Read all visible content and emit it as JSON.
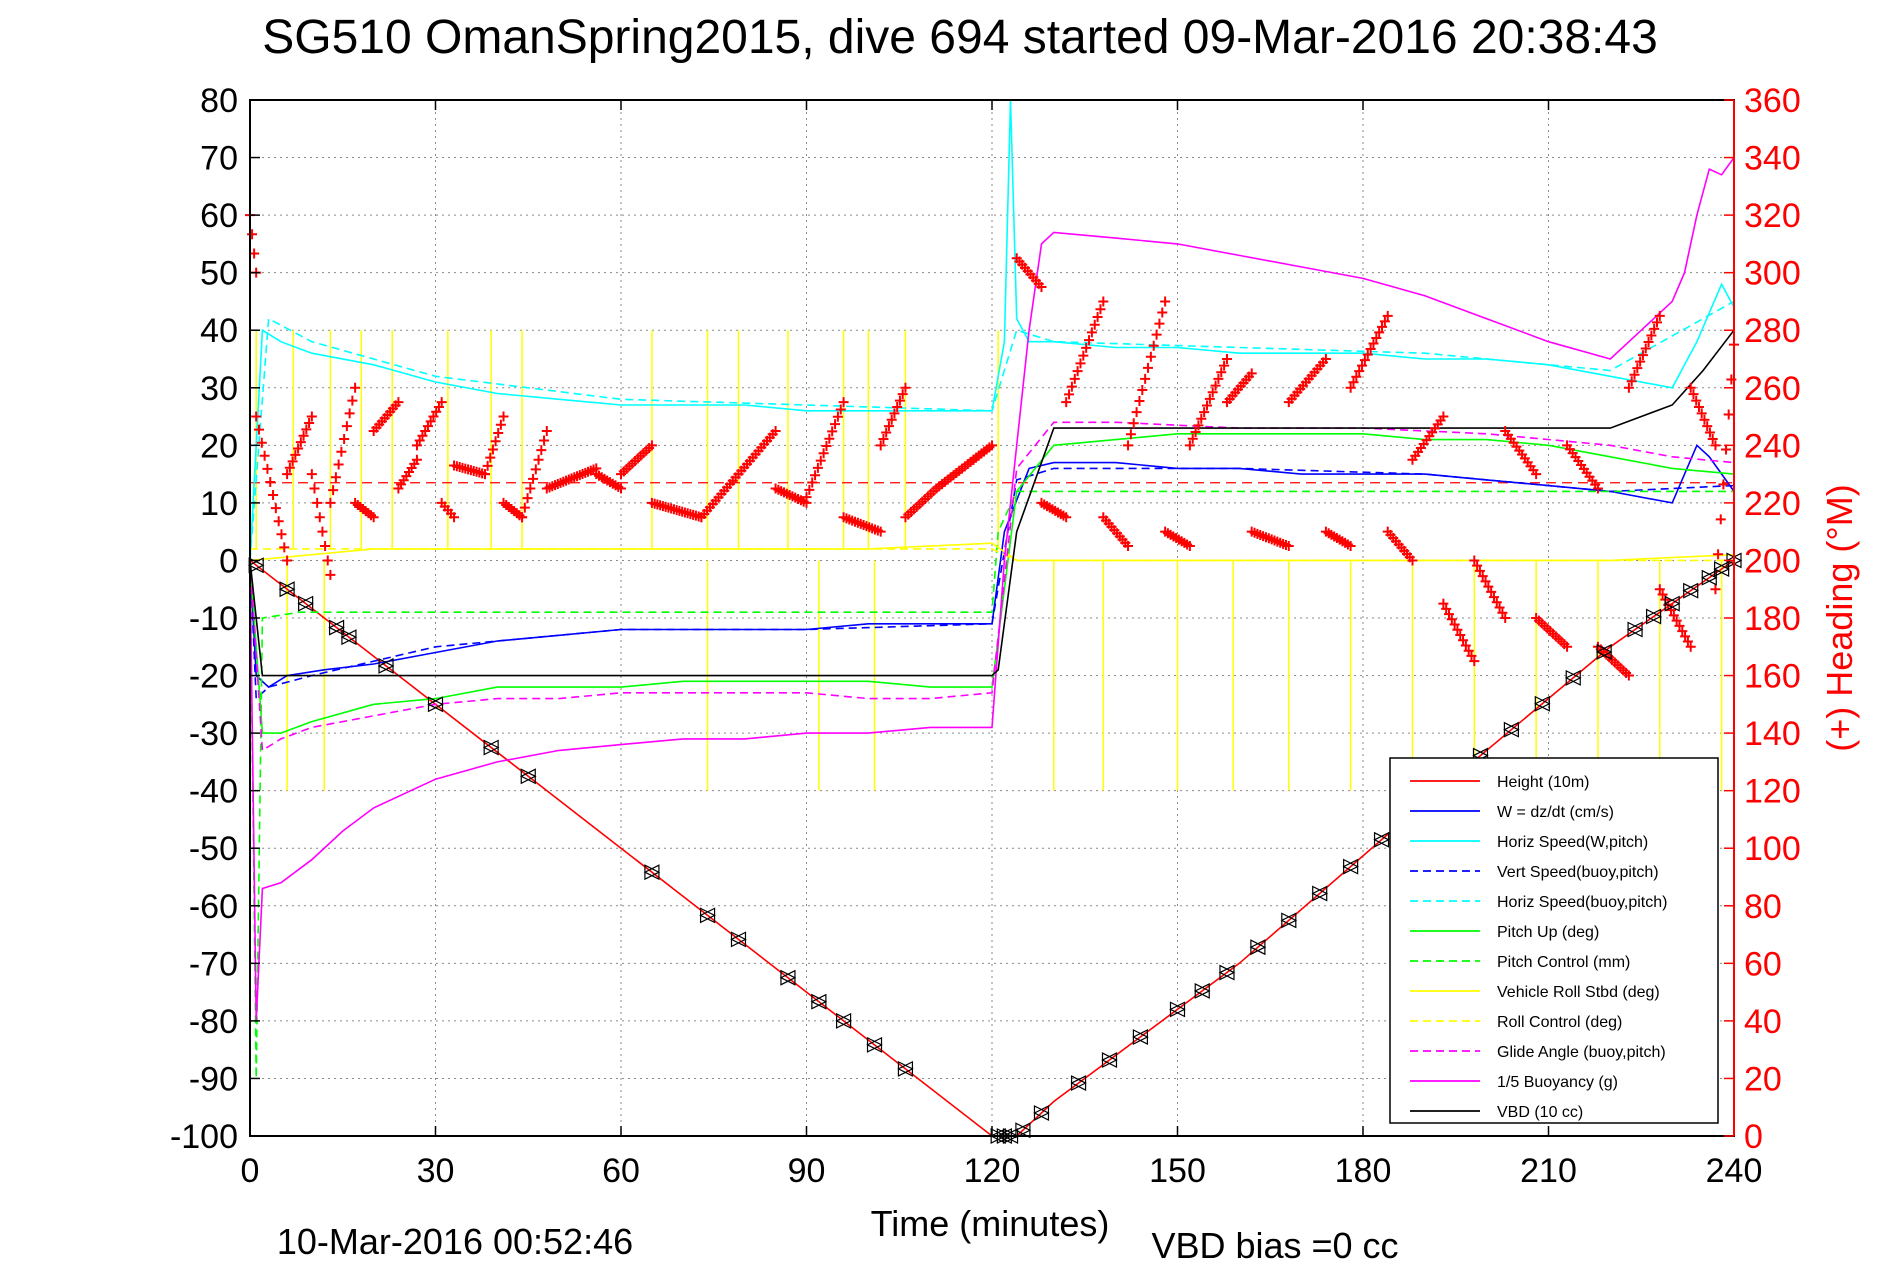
{
  "chart_data": {
    "type": "line",
    "title": "SG510 OmanSpring2015, dive 694 started 09-Mar-2016 20:38:43",
    "xlabel": "Time (minutes)",
    "ylabel_right": "(+) Heading (°M)",
    "footer_left": "10-Mar-2016 00:52:46",
    "footer_right": "VBD bias =0 cc",
    "xlim": [
      0,
      240
    ],
    "ylim": [
      -100,
      80
    ],
    "ylim_right": [
      0,
      360
    ],
    "x_ticks": [
      0,
      30,
      60,
      90,
      120,
      150,
      180,
      210,
      240
    ],
    "y_ticks": [
      80,
      70,
      60,
      50,
      40,
      30,
      20,
      10,
      0,
      -10,
      -20,
      -30,
      -40,
      -50,
      -60,
      -70,
      -80,
      -90,
      -100
    ],
    "y_ticks_right": [
      360,
      340,
      320,
      300,
      280,
      260,
      240,
      220,
      200,
      180,
      160,
      140,
      120,
      100,
      80,
      60,
      40,
      20,
      0
    ],
    "grid": true,
    "legend_position": "bottom-right",
    "colors": {
      "height": "#ff0000",
      "w": "#0000ff",
      "horiz_speed": "#00ffff",
      "pitch": "#00ff00",
      "roll": "#ffff00",
      "glide": "#ff00ff",
      "buoyancy": "#ff00ff",
      "vbd": "#000000",
      "heading": "#ff0000",
      "axis_right": "#ff0000"
    },
    "series": [
      {
        "name": "Height (10m)",
        "color": "#ff0000",
        "dash": false,
        "x": [
          0,
          120,
          124,
          130,
          160,
          190,
          220,
          240
        ],
        "y": [
          0,
          -100,
          -100,
          -94,
          -70,
          -42,
          -15,
          0
        ]
      },
      {
        "name": "W = dz/dt (cm/s)",
        "color": "#0000ff",
        "dash": false,
        "x": [
          0,
          1,
          3,
          6,
          12,
          20,
          30,
          40,
          50,
          60,
          70,
          80,
          90,
          100,
          110,
          120,
          122,
          126,
          130,
          140,
          150,
          160,
          170,
          180,
          190,
          200,
          210,
          220,
          230,
          234,
          236,
          240
        ],
        "y": [
          0,
          -20,
          -22,
          -20,
          -19,
          -18,
          -16,
          -14,
          -13,
          -12,
          -12,
          -12,
          -12,
          -11,
          -11,
          -11,
          5,
          16,
          17,
          17,
          16,
          16,
          15,
          15,
          15,
          14,
          13,
          12,
          10,
          20,
          18,
          12
        ]
      },
      {
        "name": "Horiz Speed(W,pitch)",
        "color": "#00ffff",
        "dash": false,
        "x": [
          0,
          2,
          5,
          10,
          20,
          30,
          40,
          50,
          60,
          70,
          80,
          90,
          100,
          110,
          120,
          122,
          123,
          124,
          126,
          130,
          140,
          150,
          160,
          170,
          180,
          190,
          200,
          210,
          220,
          230,
          234,
          238,
          240
        ],
        "y": [
          0,
          40,
          38,
          36,
          34,
          31,
          29,
          28,
          27,
          27,
          27,
          26,
          26,
          26,
          26,
          38,
          80,
          42,
          38,
          38,
          37,
          37,
          36,
          36,
          36,
          35,
          35,
          34,
          32,
          30,
          38,
          48,
          44
        ]
      },
      {
        "name": "Vert Speed(buoy,pitch)",
        "color": "#0000ff",
        "dash": true,
        "x": [
          0,
          1,
          3,
          10,
          30,
          60,
          90,
          120,
          124,
          130,
          160,
          190,
          220,
          240
        ],
        "y": [
          0,
          -24,
          -22,
          -20,
          -15,
          -12,
          -12,
          -11,
          14,
          16,
          16,
          15,
          12,
          13
        ]
      },
      {
        "name": "Horiz Speed(buoy,pitch)",
        "color": "#00ffff",
        "dash": true,
        "x": [
          0,
          3,
          10,
          30,
          60,
          90,
          120,
          124,
          130,
          160,
          190,
          220,
          240
        ],
        "y": [
          0,
          42,
          38,
          32,
          28,
          27,
          26,
          40,
          38,
          37,
          36,
          33,
          45
        ]
      },
      {
        "name": "Pitch Up (deg)",
        "color": "#00ff00",
        "dash": false,
        "x": [
          0,
          2,
          5,
          10,
          20,
          30,
          40,
          50,
          60,
          70,
          80,
          90,
          100,
          110,
          120,
          124,
          130,
          140,
          150,
          160,
          170,
          180,
          190,
          200,
          210,
          220,
          230,
          240
        ],
        "y": [
          0,
          -30,
          -30,
          -28,
          -25,
          -24,
          -22,
          -22,
          -22,
          -21,
          -21,
          -21,
          -21,
          -22,
          -22,
          12,
          20,
          21,
          22,
          22,
          22,
          22,
          21,
          21,
          20,
          18,
          16,
          15
        ]
      },
      {
        "name": "Pitch Control (mm)",
        "color": "#00ff00",
        "dash": true,
        "x": [
          0,
          1,
          2,
          8,
          120,
          121,
          124,
          240
        ],
        "y": [
          0,
          -90,
          -10,
          -9,
          -9,
          5,
          12,
          12
        ]
      },
      {
        "name": "Vehicle Roll Stbd (deg)",
        "color": "#ffff00",
        "dash": false,
        "x": [
          0,
          10,
          20,
          40,
          60,
          80,
          100,
          120,
          124,
          130,
          160,
          190,
          220,
          240
        ],
        "y": [
          0,
          1,
          2,
          2,
          2,
          2,
          2,
          3,
          0,
          0,
          0,
          0,
          0,
          1
        ]
      },
      {
        "name": "Roll Control (deg)",
        "color": "#ffff00",
        "dash": true,
        "x": [
          0,
          120,
          124,
          240
        ],
        "y": [
          2,
          2,
          0,
          0
        ]
      },
      {
        "name": "Glide Angle (buoy,pitch)",
        "color": "#ff00ff",
        "dash": true,
        "x": [
          0,
          2,
          5,
          10,
          20,
          30,
          40,
          50,
          60,
          70,
          80,
          90,
          100,
          110,
          120,
          124,
          130,
          140,
          160,
          180,
          200,
          220,
          230,
          240
        ],
        "y": [
          0,
          -33,
          -31,
          -29,
          -27,
          -25,
          -24,
          -24,
          -23,
          -23,
          -23,
          -23,
          -24,
          -24,
          -23,
          16,
          24,
          24,
          23,
          23,
          22,
          20,
          18,
          17
        ]
      },
      {
        "name": "1/5 Buoyancy (g)",
        "color": "#ff00ff",
        "dash": false,
        "x": [
          0,
          1,
          2,
          5,
          10,
          15,
          20,
          30,
          40,
          50,
          60,
          70,
          80,
          90,
          100,
          110,
          120,
          122,
          124,
          126,
          128,
          130,
          140,
          150,
          160,
          170,
          180,
          190,
          200,
          210,
          220,
          225,
          230,
          232,
          234,
          236,
          238,
          240
        ],
        "y": [
          0,
          -80,
          -57,
          -56,
          -52,
          -47,
          -43,
          -38,
          -35,
          -33,
          -32,
          -31,
          -31,
          -30,
          -30,
          -29,
          -29,
          0,
          20,
          40,
          55,
          57,
          56,
          55,
          53,
          51,
          49,
          46,
          42,
          38,
          35,
          40,
          45,
          50,
          60,
          68,
          67,
          70
        ]
      },
      {
        "name": "VBD (10 cc)",
        "color": "#000000",
        "dash": false,
        "x": [
          0,
          1,
          2,
          120,
          121,
          124,
          130,
          160,
          190,
          220,
          230,
          235,
          240
        ],
        "y": [
          0,
          -10,
          -20,
          -20,
          -19,
          5,
          23,
          23,
          23,
          23,
          27,
          33,
          40
        ]
      }
    ],
    "heading_segments": [
      {
        "x0": 0,
        "x1": 1,
        "y0": 320,
        "y1": 300
      },
      {
        "x0": 1,
        "x1": 6,
        "y0": 250,
        "y1": 200
      },
      {
        "x0": 6,
        "x1": 10,
        "y0": 230,
        "y1": 250
      },
      {
        "x0": 10,
        "x1": 13,
        "y0": 230,
        "y1": 195
      },
      {
        "x0": 13,
        "x1": 17,
        "y0": 220,
        "y1": 260
      },
      {
        "x0": 17,
        "x1": 20,
        "y0": 220,
        "y1": 215
      },
      {
        "x0": 20,
        "x1": 24,
        "y0": 245,
        "y1": 255
      },
      {
        "x0": 24,
        "x1": 27,
        "y0": 225,
        "y1": 235
      },
      {
        "x0": 27,
        "x1": 31,
        "y0": 240,
        "y1": 255
      },
      {
        "x0": 31,
        "x1": 33,
        "y0": 220,
        "y1": 215
      },
      {
        "x0": 33,
        "x1": 38,
        "y0": 233,
        "y1": 230
      },
      {
        "x0": 38,
        "x1": 41,
        "y0": 230,
        "y1": 250
      },
      {
        "x0": 41,
        "x1": 44,
        "y0": 220,
        "y1": 215
      },
      {
        "x0": 44,
        "x1": 48,
        "y0": 215,
        "y1": 245
      },
      {
        "x0": 48,
        "x1": 56,
        "y0": 225,
        "y1": 232
      },
      {
        "x0": 56,
        "x1": 60,
        "y0": 230,
        "y1": 225
      },
      {
        "x0": 60,
        "x1": 65,
        "y0": 230,
        "y1": 240
      },
      {
        "x0": 65,
        "x1": 73,
        "y0": 220,
        "y1": 215
      },
      {
        "x0": 73,
        "x1": 79,
        "y0": 215,
        "y1": 230
      },
      {
        "x0": 79,
        "x1": 85,
        "y0": 230,
        "y1": 245
      },
      {
        "x0": 85,
        "x1": 90,
        "y0": 225,
        "y1": 220
      },
      {
        "x0": 90,
        "x1": 96,
        "y0": 222,
        "y1": 255
      },
      {
        "x0": 96,
        "x1": 102,
        "y0": 215,
        "y1": 210
      },
      {
        "x0": 102,
        "x1": 106,
        "y0": 240,
        "y1": 260
      },
      {
        "x0": 106,
        "x1": 111,
        "y0": 215,
        "y1": 225
      },
      {
        "x0": 111,
        "x1": 117,
        "y0": 225,
        "y1": 235
      },
      {
        "x0": 117,
        "x1": 120,
        "y0": 235,
        "y1": 240
      },
      {
        "x0": 124,
        "x1": 128,
        "y0": 305,
        "y1": 295
      },
      {
        "x0": 128,
        "x1": 132,
        "y0": 220,
        "y1": 215
      },
      {
        "x0": 132,
        "x1": 138,
        "y0": 255,
        "y1": 290
      },
      {
        "x0": 138,
        "x1": 142,
        "y0": 215,
        "y1": 205
      },
      {
        "x0": 142,
        "x1": 148,
        "y0": 240,
        "y1": 290
      },
      {
        "x0": 148,
        "x1": 152,
        "y0": 210,
        "y1": 205
      },
      {
        "x0": 152,
        "x1": 158,
        "y0": 240,
        "y1": 270
      },
      {
        "x0": 158,
        "x1": 162,
        "y0": 255,
        "y1": 265
      },
      {
        "x0": 162,
        "x1": 168,
        "y0": 210,
        "y1": 205
      },
      {
        "x0": 168,
        "x1": 174,
        "y0": 255,
        "y1": 270
      },
      {
        "x0": 174,
        "x1": 178,
        "y0": 210,
        "y1": 205
      },
      {
        "x0": 178,
        "x1": 184,
        "y0": 260,
        "y1": 285
      },
      {
        "x0": 184,
        "x1": 188,
        "y0": 210,
        "y1": 200
      },
      {
        "x0": 188,
        "x1": 193,
        "y0": 235,
        "y1": 250
      },
      {
        "x0": 193,
        "x1": 198,
        "y0": 185,
        "y1": 165
      },
      {
        "x0": 198,
        "x1": 203,
        "y0": 200,
        "y1": 180
      },
      {
        "x0": 203,
        "x1": 208,
        "y0": 245,
        "y1": 230
      },
      {
        "x0": 208,
        "x1": 213,
        "y0": 180,
        "y1": 170
      },
      {
        "x0": 213,
        "x1": 218,
        "y0": 240,
        "y1": 225
      },
      {
        "x0": 218,
        "x1": 223,
        "y0": 170,
        "y1": 160
      },
      {
        "x0": 223,
        "x1": 228,
        "y0": 260,
        "y1": 285
      },
      {
        "x0": 228,
        "x1": 233,
        "y0": 190,
        "y1": 170
      },
      {
        "x0": 233,
        "x1": 237,
        "y0": 260,
        "y1": 240
      },
      {
        "x0": 237,
        "x1": 240,
        "y0": 190,
        "y1": 275
      }
    ],
    "heading_mean": 227,
    "yellow_spikes": {
      "up": [
        1,
        7,
        13,
        18,
        23,
        32,
        39,
        44,
        65,
        74,
        79,
        87,
        96,
        100,
        106,
        121
      ],
      "down": [
        6,
        12,
        74,
        92,
        101,
        130,
        138,
        150,
        159,
        168,
        178,
        188,
        198,
        208,
        218,
        228,
        238
      ]
    },
    "markers": [
      1,
      6,
      9,
      14,
      16,
      22,
      30,
      39,
      45,
      65,
      74,
      79,
      87,
      92,
      96,
      101,
      106,
      121,
      122,
      123,
      125,
      128,
      134,
      139,
      144,
      150,
      154,
      158,
      163,
      168,
      173,
      178,
      183,
      189,
      194,
      199,
      204,
      209,
      214,
      219,
      224,
      227,
      230,
      233,
      236,
      238,
      240
    ]
  }
}
